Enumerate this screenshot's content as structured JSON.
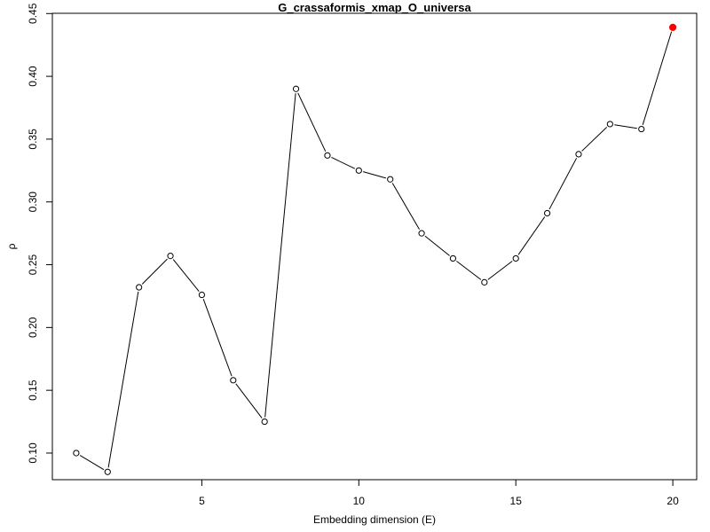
{
  "chart_data": {
    "type": "line",
    "title": "G_crassaformis_xmap_O_universa",
    "xlabel": "Embedding dimension (E)",
    "ylabel": "ρ",
    "xlim": [
      0.24,
      20.76
    ],
    "ylim": [
      0.0788,
      0.4502
    ],
    "x_ticks": [
      5,
      10,
      15,
      20
    ],
    "y_ticks": [
      0.1,
      0.15,
      0.2,
      0.25,
      0.3,
      0.35,
      0.4,
      0.45
    ],
    "y_tick_labels": [
      "0.10",
      "0.15",
      "0.20",
      "0.25",
      "0.30",
      "0.35",
      "0.40",
      "0.45"
    ],
    "grid": false,
    "series": [
      {
        "x": [
          1,
          2,
          3,
          4,
          5,
          6,
          7,
          8,
          9,
          10,
          11,
          12,
          13,
          14,
          15,
          16,
          17,
          18,
          19,
          20
        ],
        "values": [
          0.1,
          0.085,
          0.232,
          0.257,
          0.226,
          0.158,
          0.125,
          0.39,
          0.337,
          0.325,
          0.318,
          0.275,
          0.255,
          0.236,
          0.255,
          0.291,
          0.338,
          0.362,
          0.358,
          0.439
        ],
        "line_color": "#000000",
        "marker": "open-circle",
        "highlight_index": 19,
        "highlight_color": "#ff0000"
      }
    ]
  }
}
